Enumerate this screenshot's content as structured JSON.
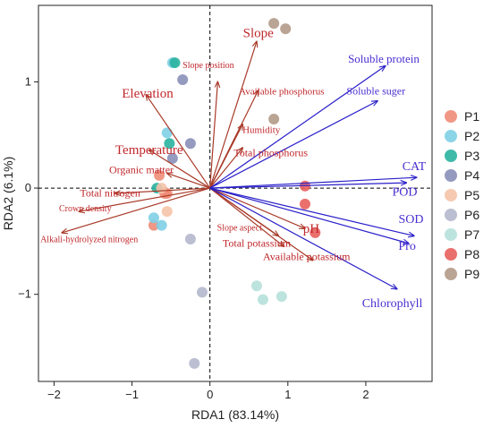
{
  "chart_data": {
    "type": "scatter",
    "subtype": "rda-biplot",
    "xlabel": "RDA1  (83.14%)",
    "ylabel": "RDA2  (6.1%)",
    "xlim": [
      -2.2,
      2.85
    ],
    "ylim": [
      -1.82,
      1.72
    ],
    "x_ticks": [
      -2,
      -1,
      0,
      1,
      2
    ],
    "y_ticks": [
      -1,
      0,
      1
    ],
    "x_tick_labels": [
      "−2",
      "−1",
      "0",
      "1",
      "2"
    ],
    "y_tick_labels": [
      "−1",
      "0",
      "1"
    ],
    "reference_lines": "dashed at x=0 and y=0",
    "legend_placement": "right",
    "series": [
      {
        "name": "P1",
        "color": "#F08C78",
        "points": [
          [
            -0.65,
            0.12
          ],
          [
            -0.72,
            -0.35
          ],
          [
            -0.58,
            -0.05
          ],
          [
            -0.55,
            -0.05
          ]
        ]
      },
      {
        "name": "P2",
        "color": "#7FCFE6",
        "points": [
          [
            -0.48,
            1.18
          ],
          [
            -0.72,
            -0.28
          ],
          [
            -0.62,
            -0.35
          ],
          [
            -0.55,
            0.52
          ]
        ]
      },
      {
        "name": "P3",
        "color": "#2AB3A0",
        "points": [
          [
            -0.45,
            1.18
          ],
          [
            -0.68,
            0.0
          ],
          [
            -0.52,
            0.42
          ]
        ]
      },
      {
        "name": "P4",
        "color": "#8A8FB8",
        "points": [
          [
            -0.35,
            1.02
          ],
          [
            -0.48,
            0.28
          ],
          [
            -0.25,
            0.42
          ]
        ]
      },
      {
        "name": "P5",
        "color": "#F5C3A8",
        "points": [
          [
            -0.62,
            0.0
          ],
          [
            -0.55,
            -0.22
          ]
        ]
      },
      {
        "name": "P6",
        "color": "#B4B8CC",
        "points": [
          [
            -0.25,
            -0.48
          ],
          [
            -0.1,
            -0.98
          ],
          [
            -0.2,
            -1.65
          ]
        ]
      },
      {
        "name": "P7",
        "color": "#B6E0DA",
        "points": [
          [
            0.6,
            -0.92
          ],
          [
            0.68,
            -1.05
          ],
          [
            0.92,
            -1.02
          ]
        ]
      },
      {
        "name": "P8",
        "color": "#E8605E",
        "points": [
          [
            1.22,
            0.02
          ],
          [
            1.22,
            -0.15
          ],
          [
            1.35,
            -0.42
          ]
        ]
      },
      {
        "name": "P9",
        "color": "#B29A88",
        "points": [
          [
            0.82,
            1.55
          ],
          [
            0.97,
            1.5
          ],
          [
            0.82,
            0.65
          ]
        ]
      }
    ],
    "arrows_environmental": [
      {
        "label": "Slope",
        "x": 0.6,
        "y": 1.38,
        "lx": 0.62,
        "ly": 1.42,
        "size": 15
      },
      {
        "label": "Slope position",
        "x": 0.1,
        "y": 1.0,
        "lx": -0.02,
        "ly": 1.13,
        "size": 10
      },
      {
        "label": "Available phosphorus",
        "x": 0.62,
        "y": 0.92,
        "lx": 0.92,
        "ly": 0.88,
        "size": 11
      },
      {
        "label": "Elevation",
        "x": -0.82,
        "y": 0.88,
        "lx": -0.8,
        "ly": 0.85,
        "size": 15
      },
      {
        "label": "Humidity",
        "x": 0.42,
        "y": 0.6,
        "lx": 0.66,
        "ly": 0.52,
        "size": 11
      },
      {
        "label": "Temperature",
        "x": -0.78,
        "y": 0.36,
        "lx": -0.78,
        "ly": 0.32,
        "size": 15
      },
      {
        "label": "Total phosphorus",
        "x": 0.42,
        "y": 0.38,
        "lx": 0.78,
        "ly": 0.3,
        "size": 12
      },
      {
        "label": "Organic matter",
        "x": -0.55,
        "y": 0.14,
        "lx": -0.88,
        "ly": 0.14,
        "size": 12
      },
      {
        "label": "Total nitrogen",
        "x": -1.22,
        "y": -0.05,
        "lx": -1.28,
        "ly": -0.08,
        "size": 12
      },
      {
        "label": "Crown density",
        "x": -1.68,
        "y": -0.22,
        "lx": -1.6,
        "ly": -0.22,
        "size": 10
      },
      {
        "label": "Alkali-hydrolyzed nitrogen",
        "x": -1.9,
        "y": -0.42,
        "lx": -1.55,
        "ly": -0.51,
        "size": 10
      },
      {
        "label": "Slope aspect",
        "x": 0.88,
        "y": -0.45,
        "lx": 0.38,
        "ly": -0.4,
        "size": 10
      },
      {
        "label": "pH",
        "x": 1.22,
        "y": -0.38,
        "lx": 1.3,
        "ly": -0.42,
        "size": 15
      },
      {
        "label": "Total potassium",
        "x": 0.95,
        "y": -0.55,
        "lx": 0.6,
        "ly": -0.55,
        "size": 12
      },
      {
        "label": "Available potassium",
        "x": 1.32,
        "y": -0.68,
        "lx": 1.24,
        "ly": -0.68,
        "size": 12
      }
    ],
    "arrows_response": [
      {
        "label": "Soluble protein",
        "x": 2.25,
        "y": 1.15,
        "lx": 2.23,
        "ly": 1.18,
        "size": 13
      },
      {
        "label": "Soluble suger",
        "x": 2.15,
        "y": 0.82,
        "lx": 2.13,
        "ly": 0.88,
        "size": 12
      },
      {
        "label": "CAT",
        "x": 2.65,
        "y": 0.1,
        "lx": 2.62,
        "ly": 0.17,
        "size": 14
      },
      {
        "label": "POD",
        "x": 2.52,
        "y": 0.05,
        "lx": 2.5,
        "ly": -0.07,
        "size": 14
      },
      {
        "label": "SOD",
        "x": 2.62,
        "y": -0.45,
        "lx": 2.58,
        "ly": -0.33,
        "size": 14
      },
      {
        "label": "Pro",
        "x": 2.55,
        "y": -0.52,
        "lx": 2.53,
        "ly": -0.58,
        "size": 14
      },
      {
        "label": "Chlorophyll",
        "x": 2.4,
        "y": -0.95,
        "lx": 2.34,
        "ly": -1.12,
        "size": 14
      }
    ],
    "colors": {
      "environmental_arrow": "#A83A28",
      "environmental_label": "#C0282C",
      "response_arrow": "#2A1FC9",
      "response_label": "#4B2ED1",
      "reference_line": "#000000"
    }
  }
}
